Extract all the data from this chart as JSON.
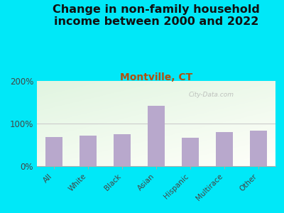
{
  "title": "Change in non-family household\nincome between 2000 and 2022",
  "subtitle": "Montville, CT",
  "categories": [
    "All",
    "White",
    "Black",
    "Asian",
    "Hispanic",
    "Multirace",
    "Other"
  ],
  "values": [
    68,
    72,
    75,
    142,
    67,
    80,
    83
  ],
  "bar_color": "#b8a8cc",
  "title_fontsize": 11.5,
  "subtitle_fontsize": 10,
  "subtitle_color": "#b05010",
  "background_outer": "#00e8f8",
  "ylim": [
    0,
    200
  ],
  "yticks": [
    0,
    100,
    200
  ],
  "ytick_labels": [
    "0%",
    "100%",
    "200%"
  ],
  "watermark": "City-Data.com",
  "grid_color": "#cccccc"
}
